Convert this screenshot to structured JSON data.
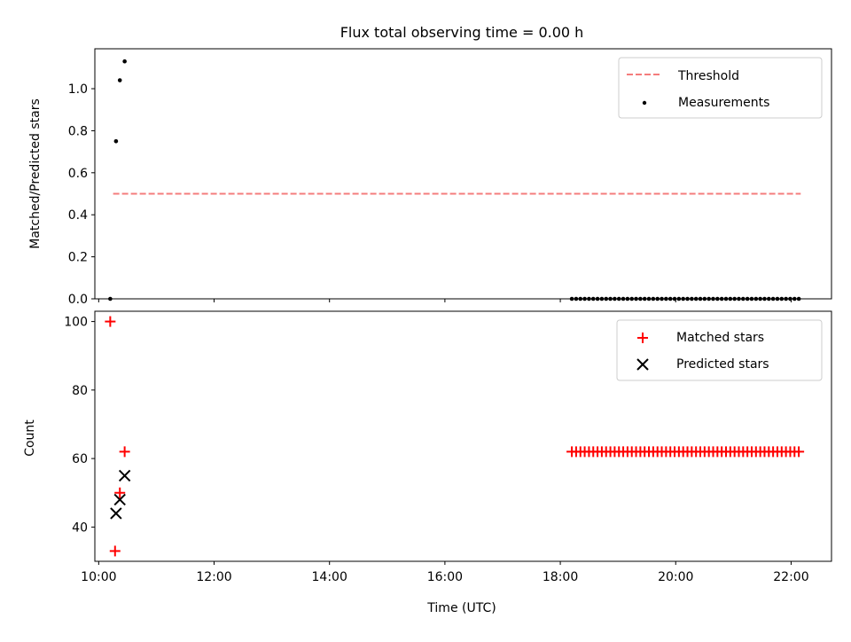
{
  "title": "Flux total observing time = 0.00 h",
  "chart_data": [
    {
      "type": "scatter",
      "ylabel": "Matched/Predicted stars",
      "xlim": [
        "09:56",
        "22:42"
      ],
      "ylim": [
        0,
        1.19
      ],
      "yticks": [
        "0.0",
        "0.2",
        "0.4",
        "0.6",
        "0.8",
        "1.0"
      ],
      "legend_position": "top-right",
      "series": [
        {
          "name": "Threshold",
          "kind": "dashed-line",
          "color": "#f47c7c",
          "x": [
            "10:15",
            "22:10"
          ],
          "y": [
            0.5,
            0.5
          ]
        },
        {
          "name": "Measurements",
          "kind": "dot",
          "color": "#000000",
          "x": [
            "10:12",
            "10:18",
            "10:22",
            "10:27"
          ],
          "y": [
            0.0,
            0.75,
            1.04,
            1.13
          ],
          "x_range": [
            "18:12",
            "22:08"
          ],
          "x_range_count": 54,
          "x_range_y": 0.0
        }
      ]
    },
    {
      "type": "scatter",
      "xlabel": "Time (UTC)",
      "ylabel": "Count",
      "xlim": [
        "09:56",
        "22:42"
      ],
      "ylim": [
        30,
        103
      ],
      "yticks": [
        "40",
        "60",
        "80",
        "100"
      ],
      "xticks": [
        "10:00",
        "12:00",
        "14:00",
        "16:00",
        "18:00",
        "20:00",
        "22:00"
      ],
      "legend_position": "top-right",
      "series": [
        {
          "name": "Matched stars",
          "marker": "+",
          "color": "#ff0000",
          "x": [
            "10:12",
            "10:17",
            "10:22",
            "10:27"
          ],
          "y": [
            100,
            33,
            50,
            62
          ],
          "x_range": [
            "18:12",
            "22:08"
          ],
          "x_range_count": 54,
          "x_range_y": 62
        },
        {
          "name": "Predicted stars",
          "marker": "x",
          "color": "#000000",
          "x": [
            "10:18",
            "10:22",
            "10:27"
          ],
          "y": [
            44,
            48,
            55
          ]
        }
      ]
    }
  ]
}
